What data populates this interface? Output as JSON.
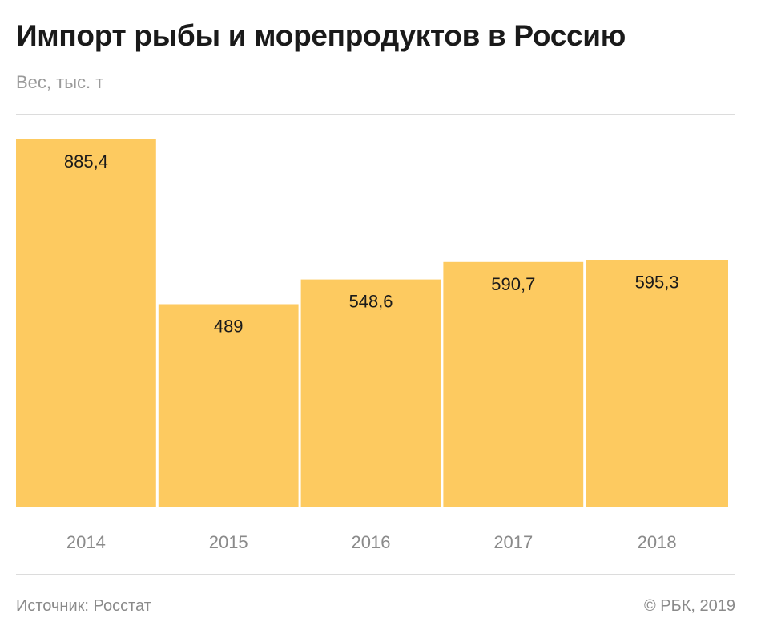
{
  "title": "Импорт рыбы и морепродуктов в Россию",
  "subtitle": "Вес, тыс. т",
  "footer": {
    "source": "Источник: Росстат",
    "copyright": "© РБК, 2019"
  },
  "colors": {
    "bar": "#fdca60",
    "value_label": "#1a1a1a",
    "tick_label": "#8a8a8a"
  },
  "chart_data": {
    "type": "bar",
    "categories": [
      "2014",
      "2015",
      "2016",
      "2017",
      "2018"
    ],
    "values": [
      885.4,
      489,
      548.6,
      590.7,
      595.3
    ],
    "value_labels": [
      "885,4",
      "489",
      "548,6",
      "590,7",
      "595,3"
    ],
    "ylim": [
      0,
      885.4
    ],
    "grid": false
  }
}
